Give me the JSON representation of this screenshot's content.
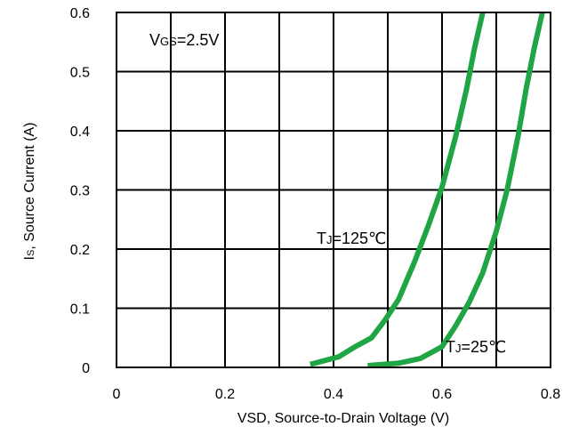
{
  "chart_data": {
    "type": "line",
    "xlabel": "VSD, Source-to-Drain Voltage (V)",
    "ylabel": {
      "main": "I",
      "sub": "S",
      "rest": ", Source Current (A)"
    },
    "xlim": [
      0,
      0.8
    ],
    "ylim": [
      0,
      0.6
    ],
    "x_ticks": [
      {
        "value": 0,
        "label": "0"
      },
      {
        "value": 0.2,
        "label": "0.2"
      },
      {
        "value": 0.4,
        "label": "0.4"
      },
      {
        "value": 0.6,
        "label": "0.6"
      },
      {
        "value": 0.8,
        "label": "0.8"
      }
    ],
    "y_ticks": [
      {
        "value": 0,
        "label": "0"
      },
      {
        "value": 0.1,
        "label": "0.1"
      },
      {
        "value": 0.2,
        "label": "0.2"
      },
      {
        "value": 0.3,
        "label": "0.3"
      },
      {
        "value": 0.4,
        "label": "0.4"
      },
      {
        "value": 0.5,
        "label": "0.5"
      },
      {
        "value": 0.6,
        "label": "0.6"
      }
    ],
    "x_grid": [
      0.1,
      0.2,
      0.3,
      0.4,
      0.5,
      0.6,
      0.7
    ],
    "y_grid": [
      0.1,
      0.2,
      0.3,
      0.4,
      0.5
    ],
    "grid": true,
    "line_color": "#1fa544",
    "series": [
      {
        "key": "tj125",
        "x": [
          0.357,
          0.41,
          0.44,
          0.47,
          0.495,
          0.52,
          0.55,
          0.575,
          0.6,
          0.625,
          0.645,
          0.66,
          0.675
        ],
        "y": [
          0.005,
          0.018,
          0.035,
          0.05,
          0.08,
          0.115,
          0.18,
          0.24,
          0.305,
          0.39,
          0.47,
          0.54,
          0.6
        ]
      },
      {
        "key": "tj25",
        "x": [
          0.463,
          0.52,
          0.56,
          0.6,
          0.625,
          0.65,
          0.675,
          0.7,
          0.72,
          0.74,
          0.755,
          0.77,
          0.785
        ],
        "y": [
          0.003,
          0.007,
          0.015,
          0.035,
          0.07,
          0.11,
          0.16,
          0.23,
          0.3,
          0.39,
          0.47,
          0.54,
          0.6
        ]
      }
    ],
    "annotations": [
      {
        "key": "vgs",
        "main": "V",
        "sub": "GS",
        "rest": "=2.5V"
      },
      {
        "key": "tj125",
        "main": "T",
        "sub": "J",
        "rest": "=125℃"
      },
      {
        "key": "tj25",
        "main": "T",
        "sub": "J",
        "rest": "=25℃"
      }
    ]
  }
}
